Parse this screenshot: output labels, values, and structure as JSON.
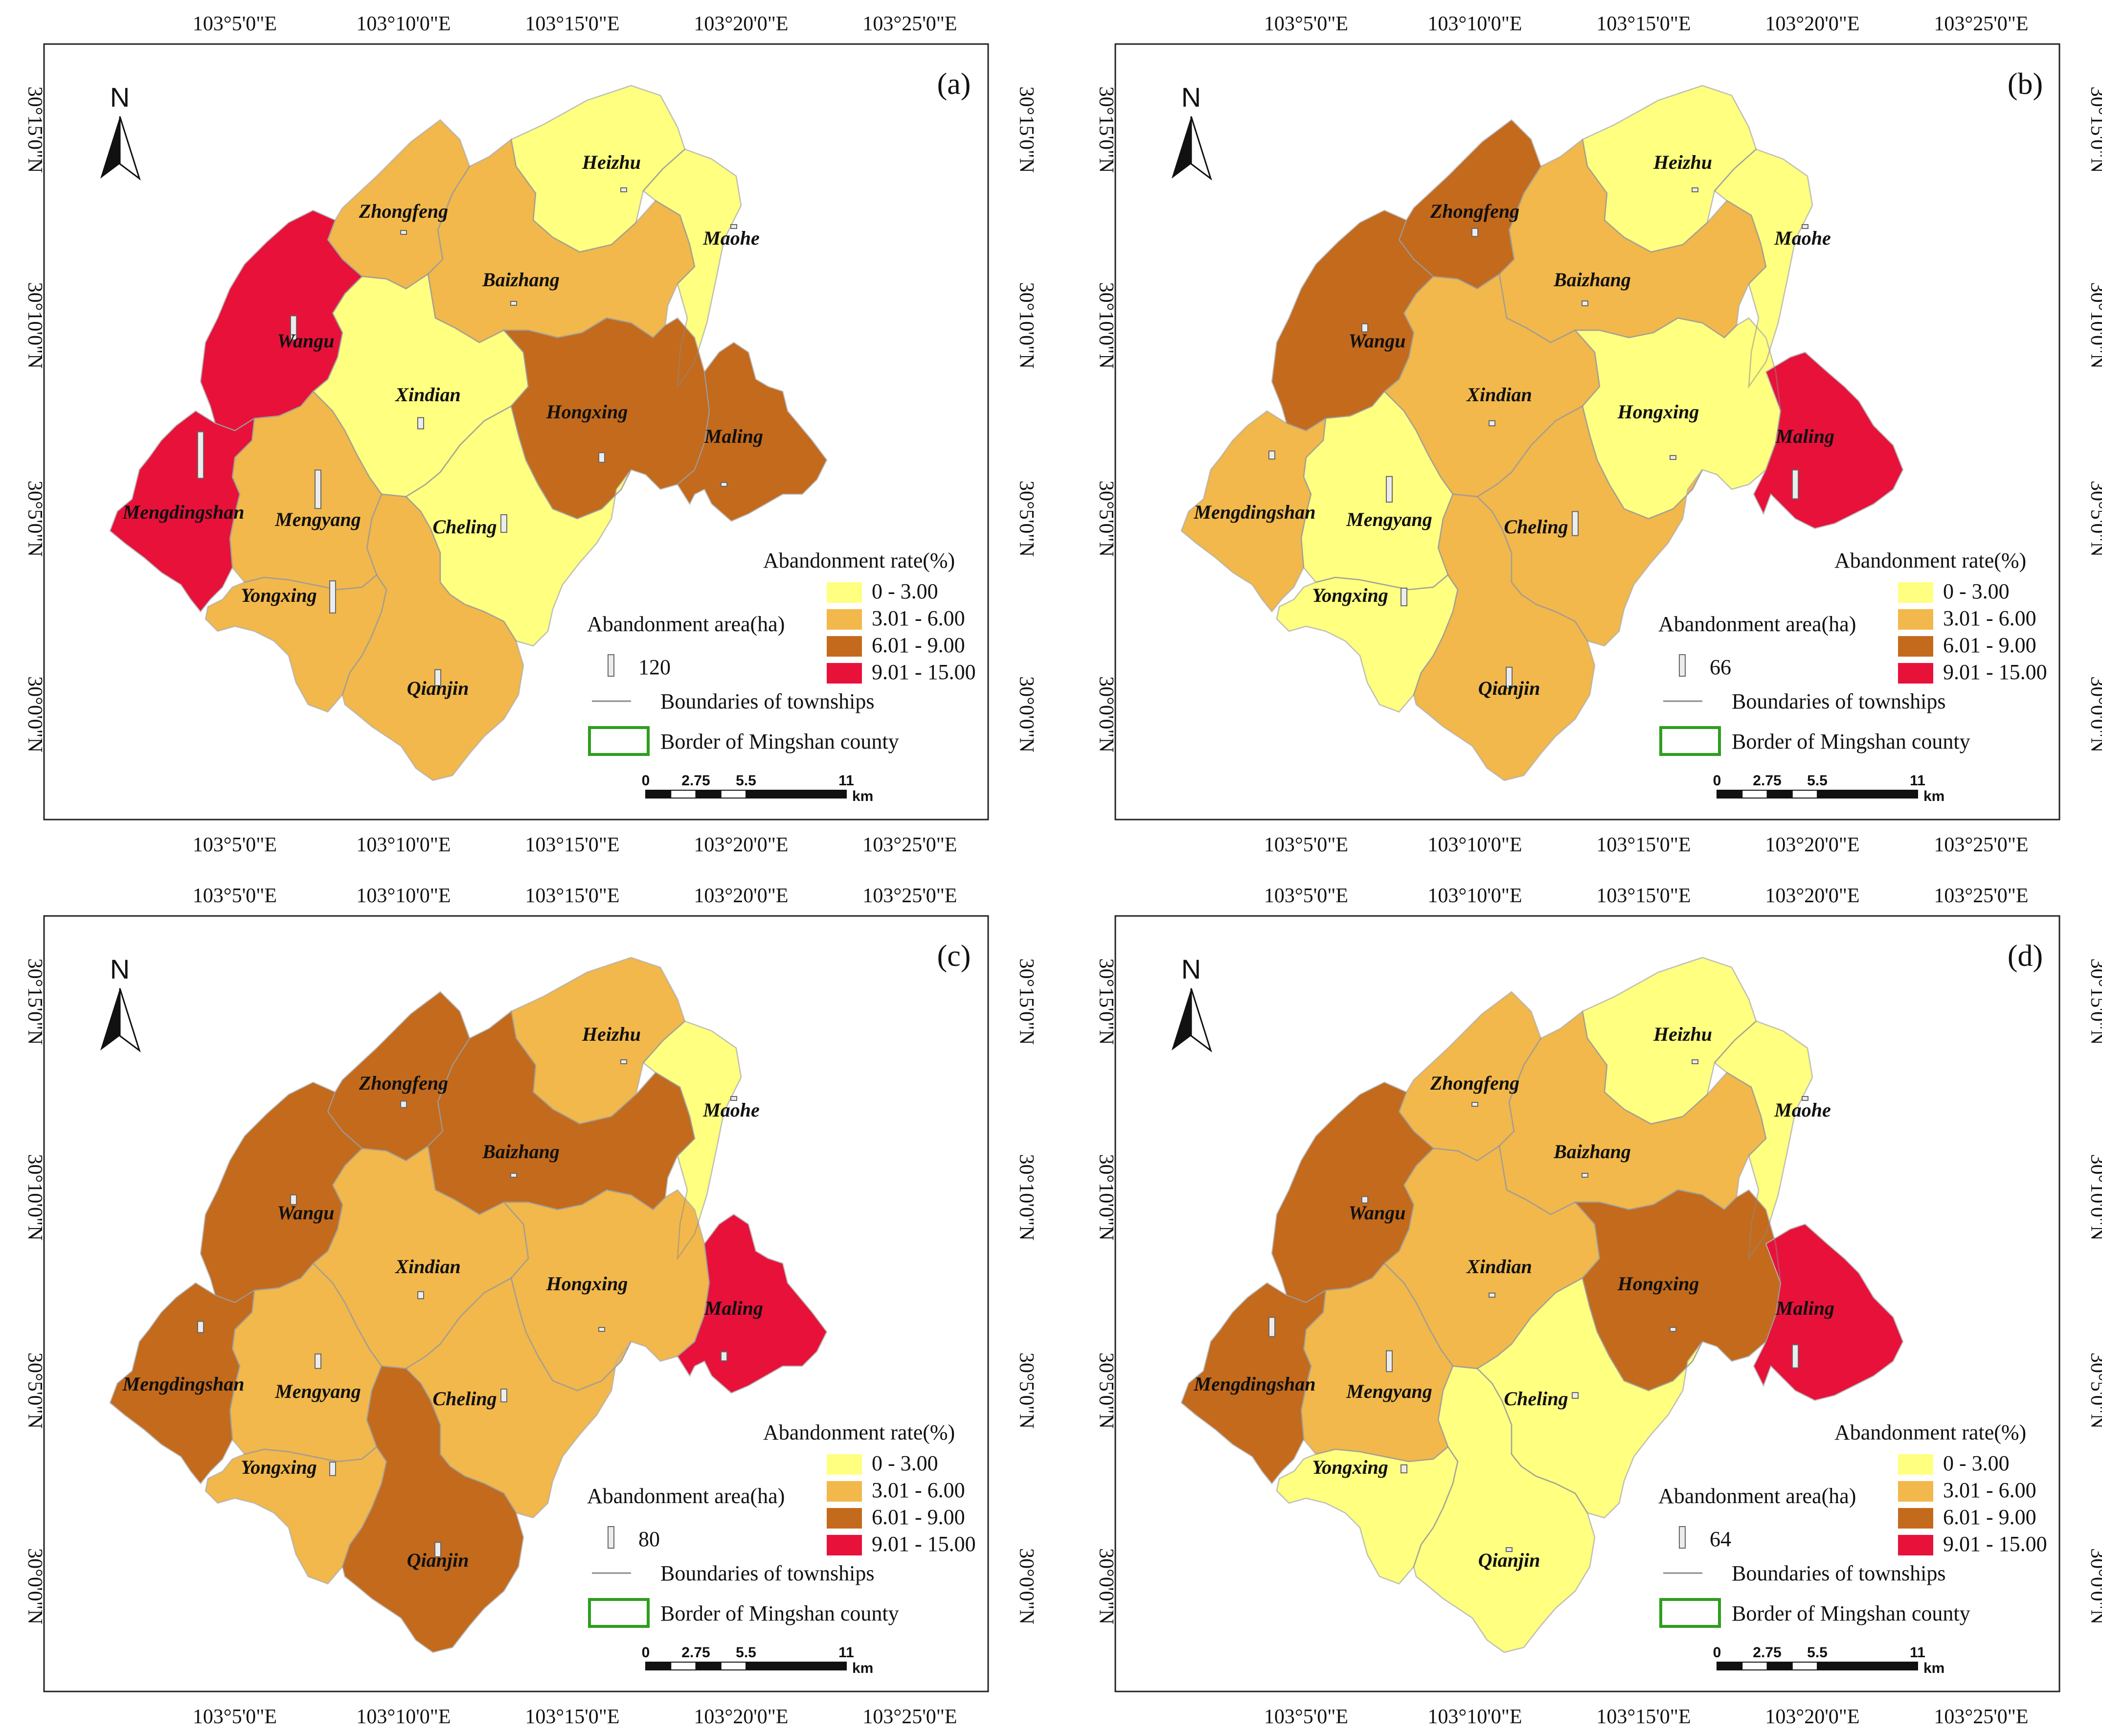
{
  "lon_ticks": [
    "103°5'0\"E",
    "103°10'0\"E",
    "103°15'0\"E",
    "103°20'0\"E",
    "103°25'0\"E"
  ],
  "lat_ticks": [
    "30°15'0\"N",
    "30°10'0\"N",
    "30°5'0\"N",
    "30°0'0\"N"
  ],
  "north_label": "N",
  "legend": {
    "rate_title": "Abandonment rate(%)",
    "classes": [
      {
        "label": "0 - 3.00",
        "color": "#ffff80"
      },
      {
        "label": "3.01 - 6.00",
        "color": "#f2b84b"
      },
      {
        "label": "6.01 - 9.00",
        "color": "#c46a1c"
      },
      {
        "label": "9.01 - 15.00",
        "color": "#e8113a"
      }
    ],
    "area_title": "Abandonment area(ha)",
    "boundaries_label": "Boundaries of townships",
    "border_label": "Border of Mingshan county",
    "border_color": "#2e9e1e"
  },
  "scale_bar": {
    "labels": [
      "0",
      "2.75",
      "5.5",
      "11"
    ],
    "unit": "km"
  },
  "townships": [
    "Heizhu",
    "Zhongfeng",
    "Maohe",
    "Baizhang",
    "Wangu",
    "Xindian",
    "Hongxing",
    "Maling",
    "Mengdingshan",
    "Mengyang",
    "Cheling",
    "Yongxing",
    "Qianjin"
  ],
  "panels": [
    {
      "id": "(a)",
      "area_ref": "120",
      "classes": {
        "Heizhu": 0,
        "Zhongfeng": 1,
        "Maohe": 0,
        "Baizhang": 1,
        "Wangu": 3,
        "Xindian": 0,
        "Hongxing": 2,
        "Maling": 2,
        "Mengdingshan": 3,
        "Mengyang": 1,
        "Cheling": 0,
        "Yongxing": 1,
        "Qianjin": 1
      },
      "areas": {
        "Heizhu": 2,
        "Zhongfeng": 8,
        "Maohe": 5,
        "Baizhang": 5,
        "Wangu": 75,
        "Xindian": 35,
        "Hongxing": 30,
        "Maling": 12,
        "Mengdingshan": 145,
        "Mengyang": 120,
        "Cheling": 55,
        "Yongxing": 100,
        "Qianjin": 50
      }
    },
    {
      "id": "(b)",
      "area_ref": "66",
      "classes": {
        "Heizhu": 0,
        "Zhongfeng": 2,
        "Maohe": 0,
        "Baizhang": 1,
        "Wangu": 2,
        "Xindian": 1,
        "Hongxing": 0,
        "Maling": 3,
        "Mengdingshan": 1,
        "Mengyang": 0,
        "Cheling": 1,
        "Yongxing": 0,
        "Qianjin": 1
      },
      "areas": {
        "Heizhu": 5,
        "Zhongfeng": 25,
        "Maohe": 5,
        "Baizhang": 15,
        "Wangu": 25,
        "Xindian": 16,
        "Hongxing": 10,
        "Maling": 90,
        "Mengdingshan": 25,
        "Mengyang": 80,
        "Cheling": 75,
        "Yongxing": 55,
        "Qianjin": 65
      }
    },
    {
      "id": "(c)",
      "area_ref": "80",
      "classes": {
        "Heizhu": 1,
        "Zhongfeng": 2,
        "Maohe": 0,
        "Baizhang": 2,
        "Wangu": 2,
        "Xindian": 1,
        "Hongxing": 1,
        "Maling": 3,
        "Mengdingshan": 2,
        "Mengyang": 1,
        "Cheling": 1,
        "Yongxing": 1,
        "Qianjin": 2
      },
      "areas": {
        "Heizhu": 5,
        "Zhongfeng": 20,
        "Maohe": 5,
        "Baizhang": 12,
        "Wangu": 30,
        "Xindian": 22,
        "Hongxing": 12,
        "Maling": 28,
        "Mengdingshan": 35,
        "Mengyang": 45,
        "Cheling": 40,
        "Yongxing": 42,
        "Qianjin": 45
      }
    },
    {
      "id": "(d)",
      "area_ref": "64",
      "classes": {
        "Heizhu": 0,
        "Zhongfeng": 1,
        "Maohe": 0,
        "Baizhang": 1,
        "Wangu": 2,
        "Xindian": 1,
        "Hongxing": 2,
        "Maling": 3,
        "Mengdingshan": 2,
        "Mengyang": 1,
        "Cheling": 0,
        "Yongxing": 0,
        "Qianjin": 0
      },
      "areas": {
        "Heizhu": 5,
        "Zhongfeng": 12,
        "Maohe": 5,
        "Baizhang": 8,
        "Wangu": 20,
        "Xindian": 13,
        "Hongxing": 12,
        "Maling": 72,
        "Mengdingshan": 60,
        "Mengyang": 65,
        "Cheling": 18,
        "Yongxing": 25,
        "Qianjin": 10
      }
    }
  ]
}
